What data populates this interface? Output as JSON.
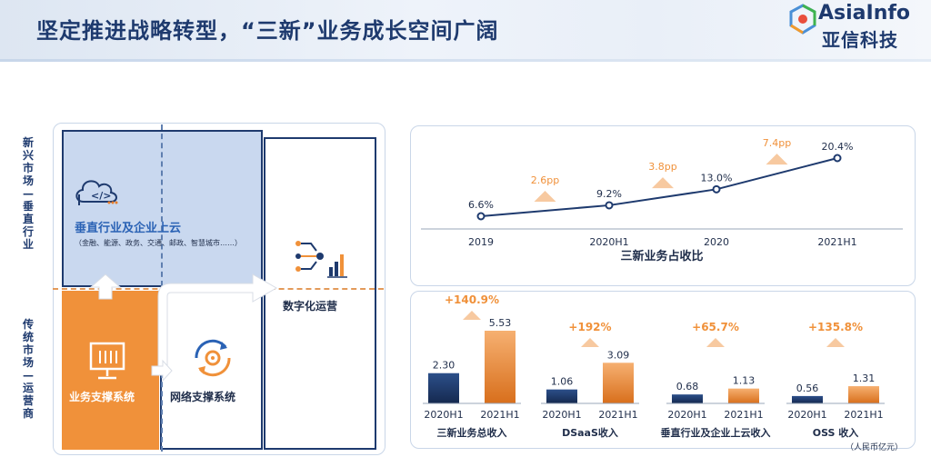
{
  "header": {
    "title": "坚定推进战略转型，“三新”业务成长空间广阔",
    "logo_en": "AsiaInfo",
    "logo_cn": "亚信科技"
  },
  "left": {
    "label_new_market": "新兴市场—垂直行业",
    "label_traditional_market": "传统市场—运营商",
    "vertical_title": "垂直行业及企业上云",
    "vertical_sub": "（金融、能源、政务、交通、邮政、智慧城市……）",
    "biz_support": "业务支撑系统",
    "network_support": "网络支撑系统",
    "digital_ops": "数字化运营"
  },
  "colors": {
    "navy": "#1e3a6e",
    "orange": "#f0913a",
    "light_blue": "#c9d8ef"
  },
  "chart_data": [
    {
      "type": "line",
      "title": "三新业务占收比",
      "x": [
        "2019",
        "2020H1",
        "2020",
        "2021H1"
      ],
      "values": [
        6.6,
        9.2,
        13.0,
        20.4
      ],
      "labels": [
        "6.6%",
        "9.2%",
        "13.0%",
        "20.4%"
      ],
      "increments": [
        "2.6pp",
        "3.8pp",
        "7.4pp"
      ]
    },
    {
      "type": "bar",
      "title": "三新业务总收入",
      "categories": [
        "2020H1",
        "2021H1"
      ],
      "values": [
        2.3,
        5.53
      ],
      "labels": [
        "2.30",
        "5.53"
      ],
      "growth": "+140.9%"
    },
    {
      "type": "bar",
      "title": "DSaaS收入",
      "categories": [
        "2020H1",
        "2021H1"
      ],
      "values": [
        1.06,
        3.09
      ],
      "labels": [
        "1.06",
        "3.09"
      ],
      "growth": "+192%"
    },
    {
      "type": "bar",
      "title": "垂直行业及企业上云收入",
      "categories": [
        "2020H1",
        "2021H1"
      ],
      "values": [
        0.68,
        1.13
      ],
      "labels": [
        "0.68",
        "1.13"
      ],
      "growth": "+65.7%"
    },
    {
      "type": "bar",
      "title": "OSS 收入",
      "categories": [
        "2020H1",
        "2021H1"
      ],
      "values": [
        0.56,
        1.31
      ],
      "labels": [
        "0.56",
        "1.31"
      ],
      "growth": "+135.8%"
    }
  ],
  "unit_note": "（人民币亿元）"
}
